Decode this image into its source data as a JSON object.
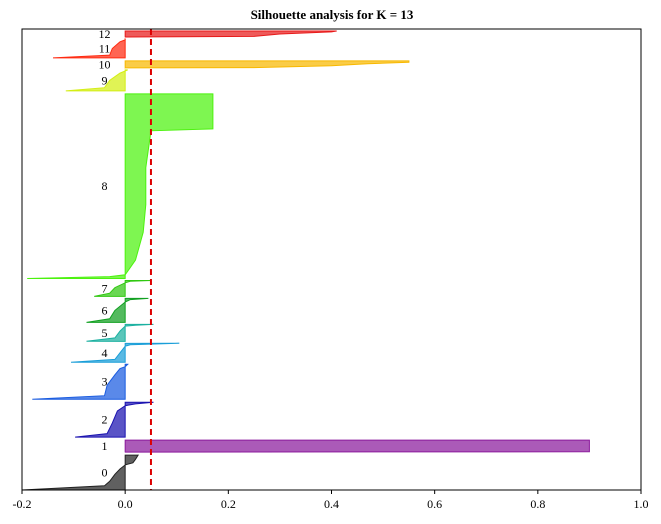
{
  "chart_data": {
    "type": "area",
    "title": "Silhouette analysis for K = 13",
    "xlabel": "",
    "ylabel": "",
    "xlim": [
      -0.2,
      1.0
    ],
    "x_ticks": [
      -0.2,
      0.0,
      0.2,
      0.4,
      0.6,
      0.8,
      1.0
    ],
    "x_tick_labels": [
      "-0.2",
      "0.0",
      "0.2",
      "0.4",
      "0.6",
      "0.8",
      "1.0"
    ],
    "grid": false,
    "legend": "none",
    "average_silhouette": 0.05,
    "average_line_color": "#dd0000",
    "series": [
      {
        "label": "0",
        "color": "#222222",
        "y_span": [
          0,
          35
        ],
        "profile": [
          [
            0.0,
            -0.2
          ],
          [
            0.12,
            -0.04
          ],
          [
            0.25,
            -0.03
          ],
          [
            0.45,
            -0.02
          ],
          [
            0.6,
            -0.01
          ],
          [
            0.72,
            0.0
          ],
          [
            0.78,
            0.015
          ],
          [
            0.88,
            0.02
          ],
          [
            1.0,
            0.025
          ]
        ]
      },
      {
        "label": "1",
        "color": "#8b1a9c",
        "y_span": [
          38,
          50
        ],
        "profile": [
          [
            0.0,
            0.0
          ],
          [
            0.02,
            0.9
          ],
          [
            0.5,
            0.9
          ],
          [
            0.98,
            0.9
          ],
          [
            1.0,
            0.9
          ]
        ]
      },
      {
        "label": "2",
        "color": "#1a12b0",
        "y_span": [
          53,
          88
        ],
        "profile": [
          [
            0.0,
            -0.097
          ],
          [
            0.1,
            -0.035
          ],
          [
            0.4,
            -0.025
          ],
          [
            0.75,
            -0.015
          ],
          [
            0.9,
            0.0
          ],
          [
            0.95,
            0.02
          ],
          [
            1.0,
            0.055
          ]
        ]
      },
      {
        "label": "3",
        "color": "#1a5ce0",
        "y_span": [
          91,
          126
        ],
        "profile": [
          [
            0.0,
            -0.18
          ],
          [
            0.1,
            -0.04
          ],
          [
            0.4,
            -0.035
          ],
          [
            0.7,
            -0.02
          ],
          [
            0.88,
            -0.01
          ],
          [
            0.93,
            0.0
          ],
          [
            1.0,
            0.005
          ]
        ]
      },
      {
        "label": "4",
        "color": "#1a9ed8",
        "y_span": [
          128,
          147
        ],
        "profile": [
          [
            0.0,
            -0.105
          ],
          [
            0.15,
            -0.02
          ],
          [
            0.5,
            -0.01
          ],
          [
            0.85,
            0.0
          ],
          [
            0.92,
            0.01
          ],
          [
            1.0,
            0.105
          ]
        ]
      },
      {
        "label": "5",
        "color": "#1ab0a0",
        "y_span": [
          149,
          166
        ],
        "profile": [
          [
            0.0,
            -0.075
          ],
          [
            0.2,
            -0.02
          ],
          [
            0.6,
            -0.01
          ],
          [
            0.9,
            0.0
          ],
          [
            0.95,
            0.02
          ],
          [
            1.0,
            0.055
          ]
        ]
      },
      {
        "label": "6",
        "color": "#10a020",
        "y_span": [
          168,
          192
        ],
        "profile": [
          [
            0.0,
            -0.075
          ],
          [
            0.15,
            -0.03
          ],
          [
            0.5,
            -0.02
          ],
          [
            0.85,
            0.0
          ],
          [
            0.95,
            0.01
          ],
          [
            1.0,
            0.045
          ]
        ]
      },
      {
        "label": "7",
        "color": "#30c810",
        "y_span": [
          194,
          210
        ],
        "profile": [
          [
            0.0,
            -0.06
          ],
          [
            0.2,
            -0.03
          ],
          [
            0.55,
            -0.02
          ],
          [
            0.85,
            0.0
          ],
          [
            0.95,
            0.01
          ],
          [
            1.0,
            0.05
          ]
        ]
      },
      {
        "label": "8",
        "color": "#4cf20e",
        "y_span": [
          212,
          397
        ],
        "profile": [
          [
            0.0,
            -0.19
          ],
          [
            0.01,
            -0.03
          ],
          [
            0.02,
            0.0
          ],
          [
            0.1,
            0.02
          ],
          [
            0.25,
            0.035
          ],
          [
            0.4,
            0.04
          ],
          [
            0.6,
            0.04
          ],
          [
            0.8,
            0.05
          ],
          [
            0.81,
            0.17
          ],
          [
            1.0,
            0.17
          ]
        ]
      },
      {
        "label": "9",
        "color": "#d4ee14",
        "y_span": [
          400,
          421
        ],
        "profile": [
          [
            0.0,
            -0.115
          ],
          [
            0.15,
            -0.04
          ],
          [
            0.5,
            -0.03
          ],
          [
            0.85,
            -0.01
          ],
          [
            0.95,
            0.0
          ],
          [
            1.0,
            0.005
          ]
        ]
      },
      {
        "label": "10",
        "color": "#f8b800",
        "y_span": [
          423,
          430
        ],
        "profile": [
          [
            0.0,
            0.0
          ],
          [
            0.05,
            0.25
          ],
          [
            0.3,
            0.4
          ],
          [
            0.6,
            0.47
          ],
          [
            0.8,
            0.55
          ],
          [
            1.0,
            0.55
          ]
        ]
      },
      {
        "label": "11",
        "color": "#ff2a10",
        "y_span": [
          433,
          452
        ],
        "profile": [
          [
            0.0,
            -0.14
          ],
          [
            0.15,
            -0.03
          ],
          [
            0.5,
            -0.025
          ],
          [
            0.85,
            -0.01
          ],
          [
            0.95,
            0.0
          ],
          [
            1.0,
            0.0
          ]
        ]
      },
      {
        "label": "12",
        "color": "#e81a1a",
        "y_span": [
          454,
          460
        ],
        "profile": [
          [
            0.0,
            0.0
          ],
          [
            0.1,
            0.25
          ],
          [
            0.5,
            0.3
          ],
          [
            0.85,
            0.4
          ],
          [
            1.0,
            0.41
          ]
        ]
      }
    ]
  }
}
